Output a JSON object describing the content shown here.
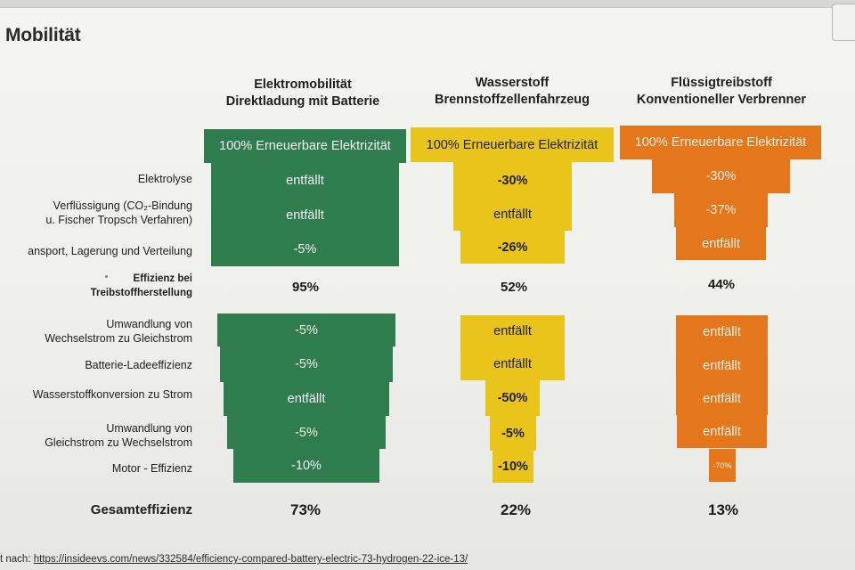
{
  "page": {
    "title": "Mobilität"
  },
  "columns": [
    {
      "header1": "Elektromobilität",
      "header2": "Direktladung mit Batterie",
      "color": "#2f7d4f"
    },
    {
      "header1": "Wasserstoff",
      "header2": "Brennstoffzellenfahrzeug",
      "color": "#e9c41a"
    },
    {
      "header1": "Flüssigtreibstoff",
      "header2": "Konventioneller Verbrenner",
      "color": "#e4771c"
    }
  ],
  "source": {
    "prefix": "t nach:",
    "link": "https://insideevs.com/news/332584/efficiency-compared-battery-electric-73-hydrogen-22-ice-13/"
  },
  "chart_data": {
    "type": "table",
    "rows": [
      "100% Erneuerbare Elektrizität",
      "Elektrolyse",
      "Verflüssigung (CO2-Bindung u. Fischer Tropsch Verfahren)",
      "ansport, Lagerung und Verteilung",
      "Effizienz bei Treibstoffherstellung",
      "Umwandlung von Wechselstrom zu Gleichstrom",
      "Batterie-Ladeeffizienz",
      "Wasserstoffkonversion zu Strom",
      "Umwandlung von Gleichstrom zu Wechselstrom",
      "Motor - Effizienz",
      "Gesamteffizienz"
    ],
    "row_labels": {
      "elektrolyse": "Elektrolyse",
      "verfl1": "Verflüssigung (CO₂-Bindung",
      "verfl2": "u. Fischer Tropsch Verfahren)",
      "transport": "ansport, Lagerung und Verteilung",
      "eff1": "Effizienz bei",
      "eff2": "Treibstoffherstellung",
      "ac1": "Umwandlung von",
      "ac2": "Wechselstrom zu Gleichstrom",
      "batt": "Batterie-Ladeeffizienz",
      "h2": "Wasserstoffkonversion zu Strom",
      "dc1": "Umwandlung von",
      "dc2": "Gleichstrom zu Wechselstrom",
      "motor": "Motor - Effizienz",
      "total": "Gesamteffizienz"
    },
    "series": [
      {
        "name": "Elektromobilität",
        "cells": {
          "source": "100% Erneuerbare Elektrizität",
          "elektrolyse": "entfällt",
          "verfl": "entfällt",
          "transport": "-5%",
          "eff": "95%",
          "ac": "-5%",
          "batt": "-5%",
          "h2": "entfällt",
          "dc": "-5%",
          "motor": "-10%",
          "total": "73%"
        }
      },
      {
        "name": "Wasserstoff",
        "cells": {
          "source": "100% Erneuerbare Elektrizität",
          "elektrolyse": "-30%",
          "verfl": "entfällt",
          "transport": "-26%",
          "eff": "52%",
          "ac": "entfällt",
          "batt": "entfällt",
          "h2": "-50%",
          "dc": "-5%",
          "motor": "-10%",
          "total": "22%"
        }
      },
      {
        "name": "Flüssigtreibstoff",
        "cells": {
          "source": "100% Erneuerbare Elektrizität",
          "elektrolyse": "-30%",
          "verfl": "-37%",
          "transport": "entfällt",
          "eff": "44%",
          "ac": "entfällt",
          "batt": "entfällt",
          "h2": "entfällt",
          "dc": "entfällt",
          "motor": "-70%",
          "total": "13%"
        }
      }
    ]
  }
}
